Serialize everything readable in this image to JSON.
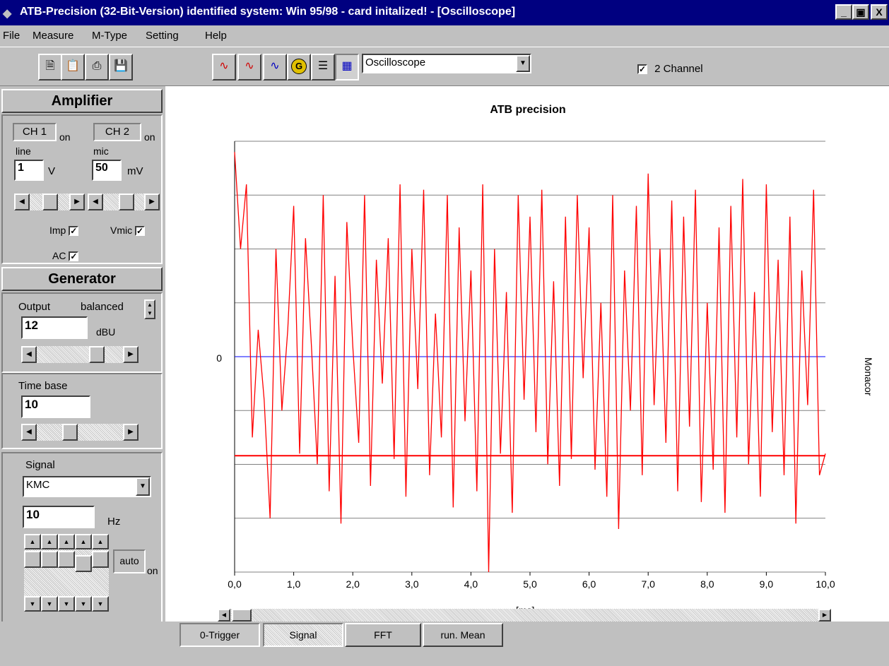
{
  "window": {
    "title": "ATB-Precision  (32-Bit-Version)  identified system: Win 95/98 - card  initalized! - [Oscilloscope]",
    "controls": [
      "_",
      "▣",
      "X"
    ]
  },
  "menu": [
    "File",
    "Measure",
    "M-Type",
    "Setting",
    "Help"
  ],
  "toolbar": {
    "mode_dropdown": "Oscilloscope",
    "two_channel_label": "2 Channel",
    "two_channel_checked": true
  },
  "amplifier": {
    "header": "Amplifier",
    "ch1_label": "CH 1",
    "ch1_state": "on",
    "ch2_label": "CH 2",
    "ch2_state": "on",
    "ch1_input": "line",
    "ch2_input": "mic",
    "ch1_value": "1",
    "ch1_unit": "V",
    "ch2_value": "50",
    "ch2_unit": "mV",
    "imp_label": "Imp",
    "vmic_label": "Vmic",
    "ac_label": "AC"
  },
  "generator": {
    "header": "Generator",
    "output_label": "Output",
    "output_mode": "balanced",
    "output_value": "12",
    "output_unit": "dBU",
    "timebase_label": "Time base",
    "timebase_value": "10",
    "signal_label": "Signal",
    "signal_type": "KMC",
    "freq_value": "10",
    "freq_unit": "Hz",
    "auto_label": "auto",
    "auto_state": "on"
  },
  "tabs": [
    "0-Trigger",
    "Signal",
    "FFT",
    "run. Mean"
  ],
  "chart_data": {
    "type": "line",
    "title": "ATB precision",
    "xlabel": "[ms]",
    "side_label": "Monacor",
    "zero_label": "0",
    "xlim": [
      0,
      10
    ],
    "x_ticks": [
      "0,0",
      "1,0",
      "2,0",
      "3,0",
      "4,0",
      "5,0",
      "6,0",
      "7,0",
      "8,0",
      "9,0",
      "10,0"
    ],
    "ylim": [
      -4,
      4
    ],
    "grid": true,
    "colors": {
      "signal": "#ff0000",
      "zero_line": "#0000ff",
      "trigger_line": "#ff0000",
      "grid": "#808080"
    },
    "trigger_level": -1.84,
    "series": [
      {
        "x": [
          0.0,
          0.1,
          0.2,
          0.3,
          0.4,
          0.5,
          0.6,
          0.7,
          0.8,
          0.9,
          1.0,
          1.1,
          1.2,
          1.3,
          1.4,
          1.5,
          1.6,
          1.7,
          1.8,
          1.9,
          2.0,
          2.1,
          2.2,
          2.3,
          2.4,
          2.5,
          2.6,
          2.7,
          2.8,
          2.9,
          3.0,
          3.1,
          3.2,
          3.3,
          3.4,
          3.5,
          3.6,
          3.7,
          3.8,
          3.9,
          4.0,
          4.1,
          4.2,
          4.3,
          4.4,
          4.5,
          4.6,
          4.7,
          4.8,
          4.9,
          5.0,
          5.1,
          5.2,
          5.3,
          5.4,
          5.5,
          5.6,
          5.7,
          5.8,
          5.9,
          6.0,
          6.1,
          6.2,
          6.3,
          6.4,
          6.5,
          6.6,
          6.7,
          6.8,
          6.9,
          7.0,
          7.1,
          7.2,
          7.3,
          7.4,
          7.5,
          7.6,
          7.7,
          7.8,
          7.9,
          8.0,
          8.1,
          8.2,
          8.3,
          8.4,
          8.5,
          8.6,
          8.7,
          8.8,
          8.9,
          9.0,
          9.1,
          9.2,
          9.3,
          9.4,
          9.5,
          9.6,
          9.7,
          9.8,
          9.9,
          10.0
        ],
        "y": [
          3.8,
          2.0,
          3.2,
          -1.5,
          0.5,
          -0.8,
          -3.0,
          2.0,
          -1.0,
          0.5,
          2.8,
          -1.8,
          2.2,
          0.2,
          -2.0,
          3.0,
          -2.5,
          1.5,
          -3.1,
          2.5,
          0.2,
          -1.6,
          3.0,
          -2.4,
          1.8,
          -0.5,
          2.2,
          -1.9,
          3.2,
          -2.6,
          2.0,
          -0.6,
          3.1,
          -2.2,
          0.8,
          -1.5,
          3.0,
          -2.8,
          2.4,
          -1.2,
          1.6,
          -2.5,
          3.2,
          -4.0,
          2.0,
          -1.8,
          1.2,
          -2.9,
          3.0,
          -0.8,
          2.6,
          -1.4,
          3.1,
          -2.0,
          1.4,
          -2.4,
          2.6,
          -1.9,
          3.0,
          -0.4,
          2.4,
          -2.1,
          1.0,
          -2.6,
          3.0,
          -3.2,
          1.6,
          -1.0,
          2.8,
          -2.2,
          3.4,
          -0.9,
          2.0,
          -1.6,
          2.9,
          -2.5,
          2.6,
          -1.3,
          3.1,
          -2.7,
          1.0,
          -2.1,
          2.4,
          -2.9,
          2.8,
          -1.5,
          3.3,
          -2.0,
          1.2,
          -2.6,
          3.2,
          -1.4,
          1.8,
          -2.2,
          2.6,
          -3.1,
          1.6,
          -0.9,
          3.1,
          -2.2,
          -1.8
        ]
      }
    ]
  }
}
